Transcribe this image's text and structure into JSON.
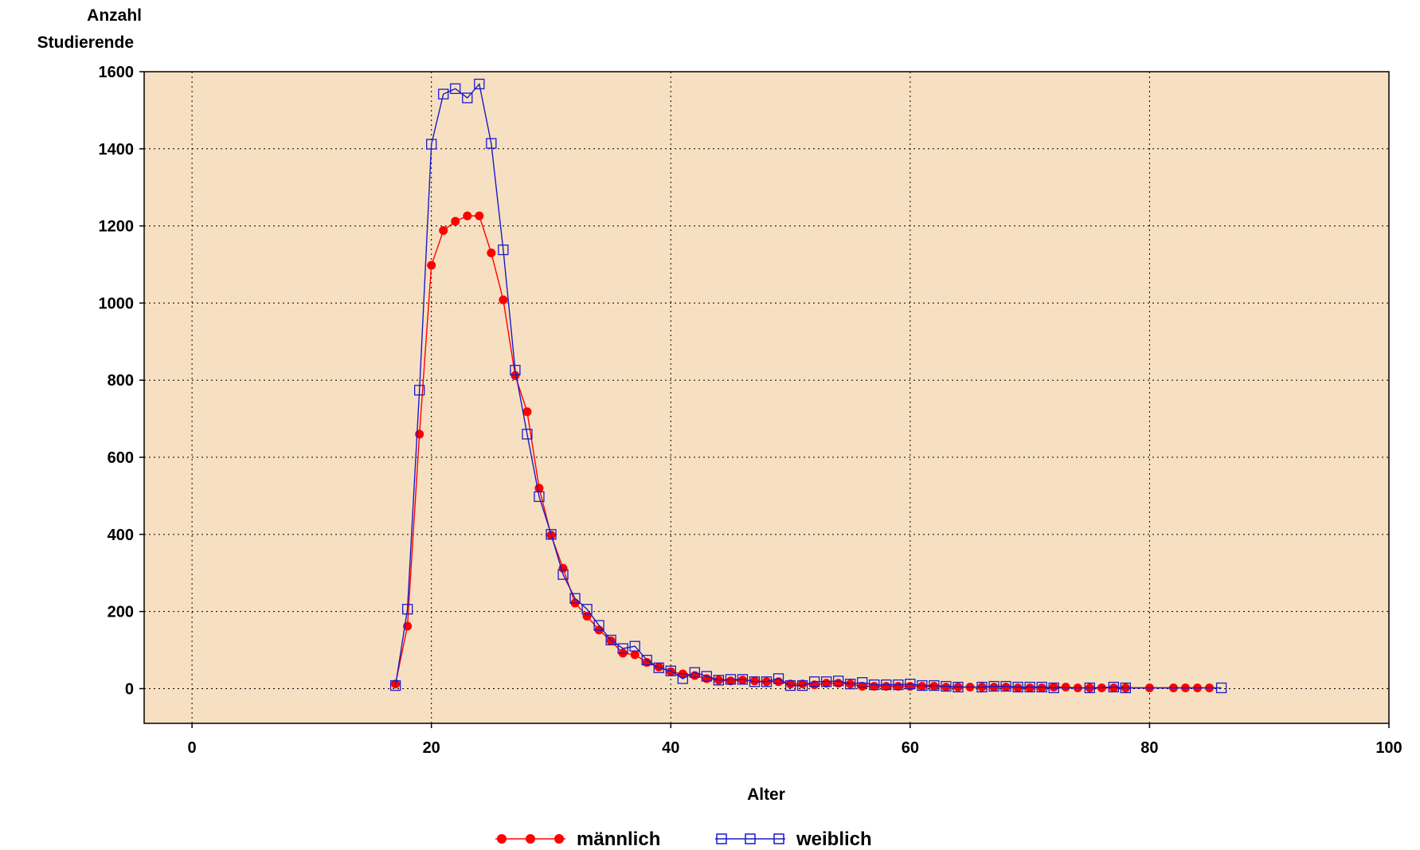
{
  "chart_data": {
    "type": "line",
    "xlabel": "Alter",
    "ylabel_lines": [
      "Anzahl",
      "Studierende"
    ],
    "xlim": [
      -4,
      100
    ],
    "ylim": [
      -90,
      1600
    ],
    "x_ticks": [
      0,
      20,
      40,
      60,
      80,
      100
    ],
    "y_ticks": [
      0,
      200,
      400,
      600,
      800,
      1000,
      1200,
      1400,
      1600
    ],
    "grid": true,
    "plot_background": "#f7e0c1",
    "legend_position": "bottom",
    "series": [
      {
        "name": "männlich",
        "color": "#ff0000",
        "marker": "filled-circle",
        "x": [
          17,
          18,
          19,
          20,
          21,
          22,
          23,
          24,
          25,
          26,
          27,
          28,
          29,
          30,
          31,
          32,
          33,
          34,
          35,
          36,
          37,
          38,
          39,
          40,
          41,
          42,
          43,
          44,
          45,
          46,
          47,
          48,
          49,
          50,
          51,
          52,
          53,
          54,
          55,
          56,
          57,
          58,
          59,
          60,
          61,
          62,
          63,
          64,
          65,
          66,
          67,
          68,
          69,
          70,
          71,
          72,
          73,
          74,
          75,
          76,
          77,
          78,
          80,
          82,
          83,
          84,
          85
        ],
        "y": [
          12,
          162,
          660,
          1098,
          1188,
          1212,
          1226,
          1226,
          1130,
          1008,
          812,
          718,
          520,
          398,
          312,
          222,
          188,
          152,
          124,
          92,
          88,
          68,
          56,
          44,
          38,
          34,
          26,
          22,
          20,
          22,
          20,
          18,
          18,
          12,
          12,
          10,
          14,
          14,
          12,
          6,
          6,
          6,
          6,
          6,
          6,
          6,
          4,
          4,
          4,
          4,
          4,
          4,
          2,
          2,
          2,
          4,
          4,
          2,
          2,
          2,
          2,
          2,
          2,
          2,
          2,
          2,
          2
        ]
      },
      {
        "name": "weiblich",
        "color": "#1a1acc",
        "marker": "open-square",
        "x": [
          17,
          18,
          19,
          20,
          21,
          22,
          23,
          24,
          25,
          26,
          27,
          28,
          29,
          30,
          31,
          32,
          33,
          34,
          35,
          36,
          37,
          38,
          39,
          40,
          41,
          42,
          43,
          44,
          45,
          46,
          47,
          48,
          49,
          50,
          51,
          52,
          53,
          54,
          55,
          56,
          57,
          58,
          59,
          60,
          61,
          62,
          63,
          64,
          66,
          67,
          68,
          69,
          70,
          71,
          72,
          75,
          77,
          78,
          86
        ],
        "y": [
          8,
          206,
          774,
          1412,
          1542,
          1556,
          1532,
          1568,
          1414,
          1138,
          826,
          660,
          498,
          400,
          296,
          234,
          206,
          164,
          126,
          104,
          110,
          74,
          54,
          46,
          26,
          42,
          32,
          22,
          24,
          24,
          18,
          18,
          26,
          8,
          8,
          18,
          18,
          20,
          12,
          16,
          10,
          10,
          10,
          12,
          8,
          8,
          6,
          4,
          4,
          6,
          6,
          4,
          4,
          4,
          2,
          2,
          4,
          2,
          2
        ]
      }
    ]
  }
}
